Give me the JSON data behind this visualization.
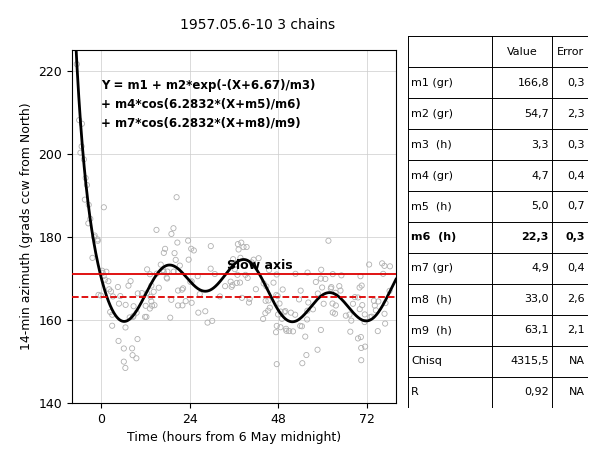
{
  "title": "1957.05.6-10 3 chains",
  "xlabel": "Time (hours from 6 May midnight)",
  "ylabel": "14-min azimuth (grads ccw from North)",
  "xlim": [
    -8,
    80
  ],
  "ylim": [
    140,
    225
  ],
  "xticks": [
    0,
    24,
    48,
    72
  ],
  "yticks": [
    140,
    160,
    180,
    200,
    220
  ],
  "slow_axis_y": 171,
  "dashed_line_y": 165.5,
  "equation_lines": [
    "Y = m1 + m2*exp(-(X+6.67)/m3)",
    "+ m4*cos(6.2832*(X+m5)/m6)",
    "+ m7*cos(6.2832*(X+m8)/m9)"
  ],
  "slow_axis_label": "Slow axis",
  "fit_params": {
    "m1": 166.8,
    "m2": 54.7,
    "m3": 3.3,
    "m4": 4.7,
    "m5": 5.0,
    "m6": 22.3,
    "m7": 4.9,
    "m8": 33.0,
    "m9": 63.1
  },
  "table_headers": [
    "",
    "Value",
    "Error"
  ],
  "table_rows": [
    [
      "m1 (gr)",
      "166,8",
      "0,3"
    ],
    [
      "m2 (gr)",
      "54,7",
      "2,3"
    ],
    [
      "m3  (h)",
      "3,3",
      "0,3"
    ],
    [
      "m4 (gr)",
      "4,7",
      "0,4"
    ],
    [
      "m5  (h)",
      "5,0",
      "0,7"
    ],
    [
      "m6  (h)",
      "22,3",
      "0,3"
    ],
    [
      "m7 (gr)",
      "4,9",
      "0,4"
    ],
    [
      "m8  (h)",
      "33,0",
      "2,6"
    ],
    [
      "m9  (h)",
      "63,1",
      "2,1"
    ],
    [
      "Chisq",
      "4315,5",
      "NA"
    ],
    [
      "R",
      "0,92",
      "NA"
    ]
  ],
  "bold_row_idx": 5,
  "scatter_color": "#b0b0b0",
  "curve_color": "#000000",
  "slow_axis_color": "#dd0000",
  "dashed_line_color": "#dd0000",
  "background_color": "#ffffff",
  "grid_color": "#cccccc"
}
